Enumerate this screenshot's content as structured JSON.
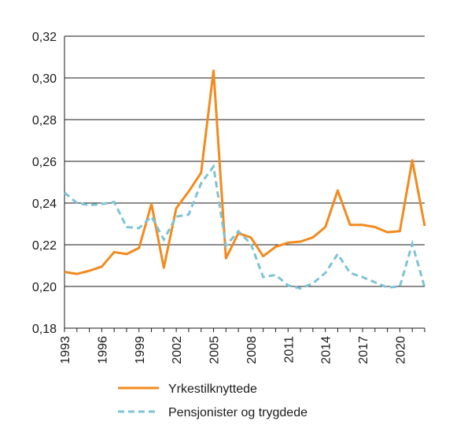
{
  "chart_data": {
    "type": "line",
    "x": [
      1993,
      1994,
      1995,
      1996,
      1997,
      1998,
      1999,
      2000,
      2001,
      2002,
      2003,
      2004,
      2005,
      2006,
      2007,
      2008,
      2009,
      2010,
      2011,
      2012,
      2013,
      2014,
      2015,
      2016,
      2017,
      2018,
      2019,
      2020,
      2021,
      2022
    ],
    "xticks": [
      1993,
      1996,
      1999,
      2002,
      2005,
      2008,
      2011,
      2014,
      2017,
      2020
    ],
    "xlim": [
      1993,
      2022
    ],
    "ylim": [
      0.18,
      0.32
    ],
    "yticks": [
      0.18,
      0.2,
      0.22,
      0.24,
      0.26,
      0.28,
      0.3,
      0.32
    ],
    "ytick_labels": [
      "0,18",
      "0,20",
      "0,22",
      "0,24",
      "0,26",
      "0,28",
      "0,30",
      "0,32"
    ],
    "grid": "horizontal",
    "legend_position": "bottom",
    "series": [
      {
        "name": "Yrkestilknyttede",
        "color": "#f28a1e",
        "style": "solid",
        "values": [
          0.207,
          0.206,
          0.2075,
          0.2095,
          0.2165,
          0.2155,
          0.2185,
          0.2395,
          0.209,
          0.2375,
          0.2455,
          0.2545,
          0.3035,
          0.2135,
          0.2255,
          0.2235,
          0.2145,
          0.219,
          0.221,
          0.2215,
          0.2235,
          0.2285,
          0.246,
          0.2295,
          0.2295,
          0.2285,
          0.226,
          0.2265,
          0.2605,
          0.229
        ]
      },
      {
        "name": "Pensjonister og trygdede",
        "color": "#7ec3d6",
        "style": "dashed",
        "values": [
          0.245,
          0.24,
          0.239,
          0.2395,
          0.2405,
          0.2285,
          0.228,
          0.2335,
          0.2225,
          0.2335,
          0.2345,
          0.2495,
          0.2575,
          0.2195,
          0.2265,
          0.2205,
          0.2045,
          0.2055,
          0.2005,
          0.199,
          0.2015,
          0.2065,
          0.2155,
          0.2065,
          0.2045,
          0.202,
          0.1995,
          0.2,
          0.2205,
          0.1995
        ]
      }
    ]
  }
}
